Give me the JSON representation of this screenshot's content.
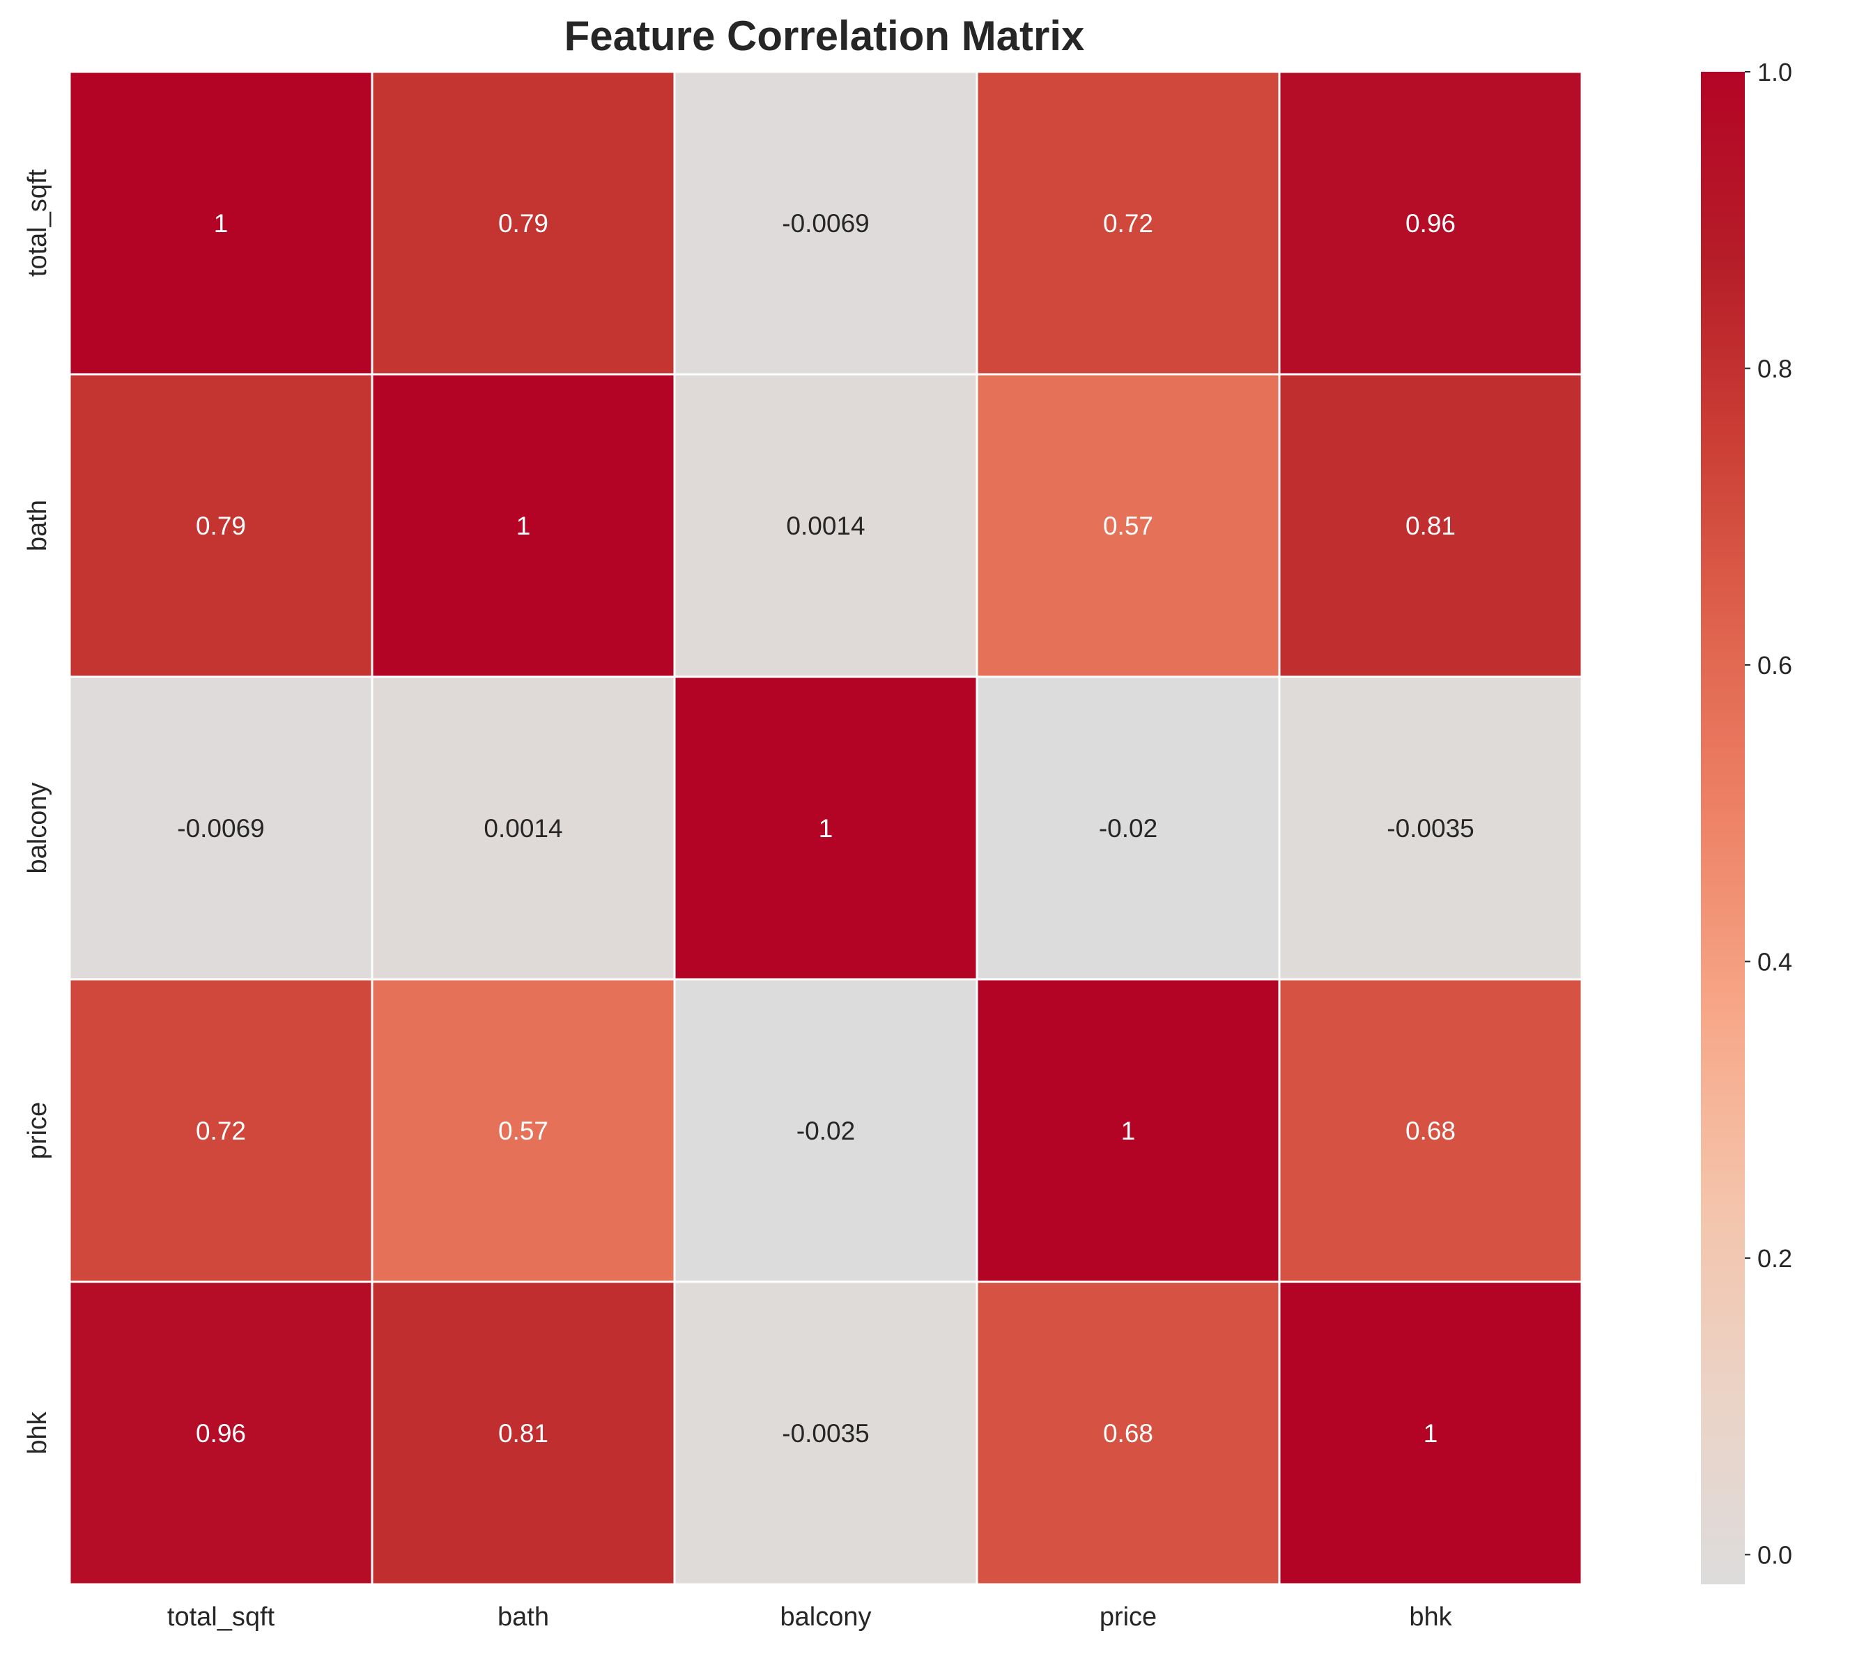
{
  "chart_data": {
    "type": "heatmap",
    "title": "Feature Correlation Matrix",
    "xlabel": "",
    "ylabel": "",
    "categories": [
      "total_sqft",
      "bath",
      "balcony",
      "price",
      "bhk"
    ],
    "matrix": [
      [
        1,
        0.79,
        -0.0069,
        0.72,
        0.96
      ],
      [
        0.79,
        1,
        0.0014,
        0.57,
        0.81
      ],
      [
        -0.0069,
        0.0014,
        1,
        -0.02,
        -0.0035
      ],
      [
        0.72,
        0.57,
        -0.02,
        1,
        0.68
      ],
      [
        0.96,
        0.81,
        -0.0035,
        0.68,
        1
      ]
    ],
    "annotations": [
      [
        "1",
        "0.79",
        "-0.0069",
        "0.72",
        "0.96"
      ],
      [
        "0.79",
        "1",
        "0.0014",
        "0.57",
        "0.81"
      ],
      [
        "-0.0069",
        "0.0014",
        "1",
        "-0.02",
        "-0.0035"
      ],
      [
        "0.72",
        "0.57",
        "-0.02",
        "1",
        "0.68"
      ],
      [
        "0.96",
        "0.81",
        "-0.0035",
        "0.68",
        "1"
      ]
    ],
    "colorbar": {
      "range": [
        -0.02,
        1.0
      ],
      "ticks": [
        "0.0",
        "0.2",
        "0.4",
        "0.6",
        "0.8",
        "1.0"
      ],
      "colormap": "coolwarm (upper half)",
      "stops": [
        "#dddcdc",
        "#ebd3c6",
        "#f4c4ab",
        "#f7a889",
        "#ee8468",
        "#e0654f",
        "#cc4036",
        "#b61d28",
        "#b40426"
      ]
    },
    "grid": false,
    "cell_border_color": "#ffffff",
    "legend": "right colorbar"
  }
}
